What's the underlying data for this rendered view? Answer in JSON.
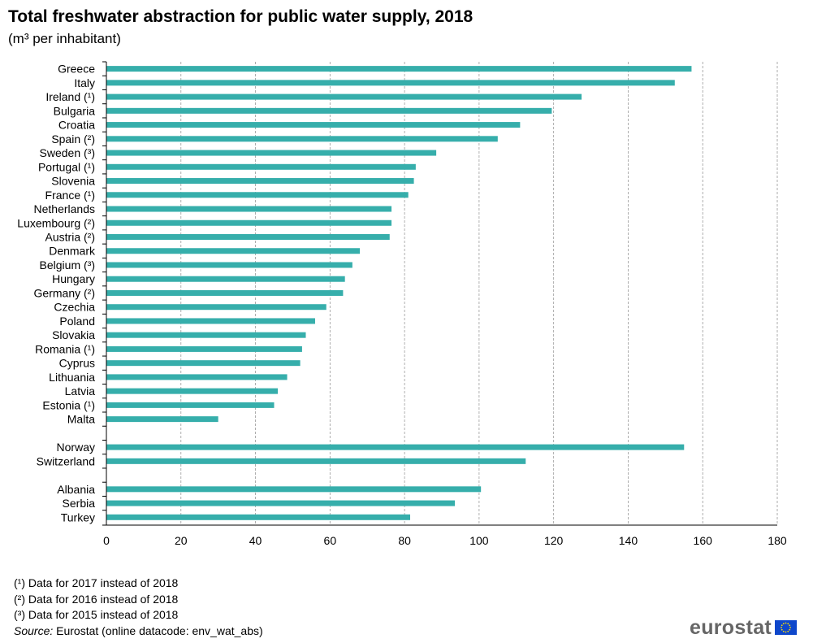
{
  "title": "Total freshwater abstraction for public water supply, 2018",
  "subtitle": "(m³ per inhabitant)",
  "footnotes": [
    "(¹) Data for 2017 instead of 2018",
    "(²) Data for 2016 instead of 2018",
    "(³) Data for 2015 instead of 2018"
  ],
  "source": {
    "label": "Source:",
    "text": "Eurostat (online datacode: env_wat_abs)"
  },
  "logo": {
    "text": "eurostat",
    "flag_icon": "eu-flag-icon"
  },
  "colors": {
    "bar": "#36aeab",
    "grid": "#9a9a9a",
    "axis": "#000000",
    "flag": "#0e47cb",
    "stars": "#ffde00"
  },
  "chart_data": {
    "type": "bar",
    "orientation": "horizontal",
    "categories": [
      "Greece",
      "Italy",
      "Ireland (¹)",
      "Bulgaria",
      "Croatia",
      "Spain (²)",
      "Sweden (³)",
      "Portugal (¹)",
      "Slovenia",
      "France (¹)",
      "Netherlands",
      "Luxembourg (²)",
      "Austria (²)",
      "Denmark",
      "Belgium (³)",
      "Hungary",
      "Germany (²)",
      "Czechia",
      "Poland",
      "Slovakia",
      "Romania (¹)",
      "Cyprus",
      "Lithuania",
      "Latvia",
      "Estonia (¹)",
      "Malta",
      "",
      "Norway",
      "Switzerland",
      "",
      "Albania",
      "Serbia",
      "Turkey"
    ],
    "values": [
      157,
      152.5,
      127.5,
      119.5,
      111,
      105,
      88.5,
      83,
      82.5,
      81,
      76.5,
      76.5,
      76,
      68,
      66,
      64,
      63.5,
      59,
      56,
      53.5,
      52.5,
      52,
      48.5,
      46,
      45,
      30,
      null,
      155,
      112.5,
      null,
      100.5,
      93.5,
      81.5
    ],
    "xlim": [
      0,
      180
    ],
    "xticks": [
      0,
      20,
      40,
      60,
      80,
      100,
      120,
      140,
      160,
      180
    ],
    "grid": true,
    "xlabel": "",
    "ylabel": ""
  }
}
